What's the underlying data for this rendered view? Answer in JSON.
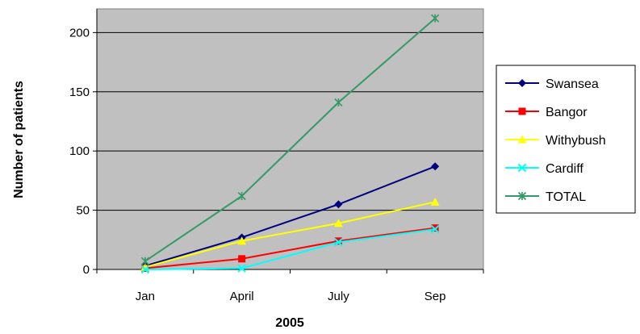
{
  "chart_data": {
    "type": "line",
    "title": "",
    "xlabel": "2005",
    "ylabel": "Number of patients",
    "categories": [
      "Jan",
      "April",
      "July",
      "Sep"
    ],
    "ylim": [
      0,
      220
    ],
    "yticks": [
      0,
      50,
      100,
      150,
      200
    ],
    "grid": "horizontal",
    "plot_background": "#c0c0c0",
    "legend_position": "right",
    "series": [
      {
        "name": "Swansea",
        "color": "#000080",
        "marker": "diamond",
        "values": [
          3,
          27,
          55,
          87
        ]
      },
      {
        "name": "Bangor",
        "color": "#ff0000",
        "marker": "square",
        "values": [
          1,
          9,
          24,
          35
        ]
      },
      {
        "name": "Withybush",
        "color": "#ffff00",
        "marker": "triangle",
        "values": [
          2,
          24,
          39,
          57
        ]
      },
      {
        "name": "Cardiff",
        "color": "#00ffff",
        "marker": "x",
        "values": [
          0,
          1,
          23,
          34
        ]
      },
      {
        "name": "TOTAL",
        "color": "#339966",
        "marker": "star",
        "values": [
          7,
          62,
          141,
          212
        ]
      }
    ]
  }
}
